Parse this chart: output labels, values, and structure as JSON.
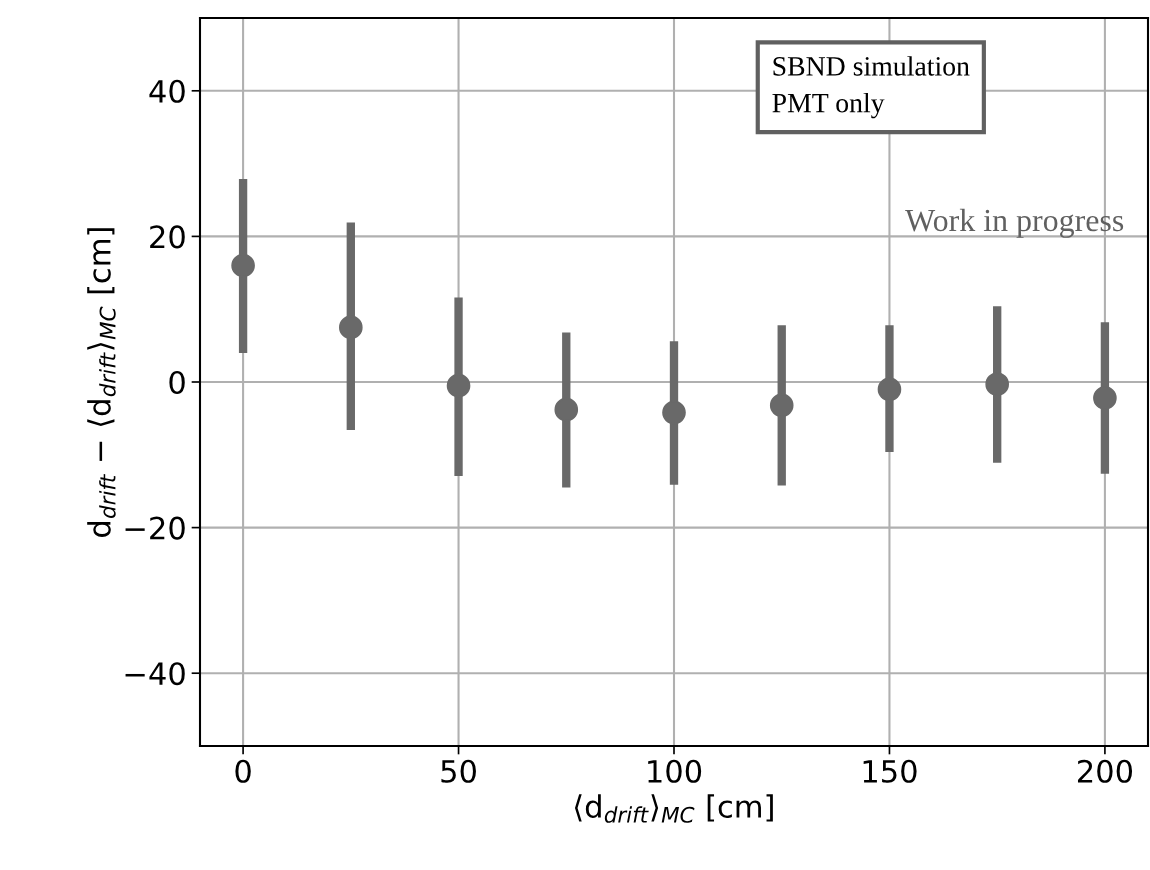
{
  "chart_data": {
    "type": "scatter",
    "xlabel": "⟨d$_{drift}$⟩$_{MC}$ [cm]",
    "ylabel": "d$_{drift}$ − ⟨d$_{drift}$⟩$_{MC}$ [cm]",
    "x": [
      0,
      25,
      50,
      75,
      100,
      125,
      150,
      175,
      200
    ],
    "series": [
      {
        "color": "#696969",
        "values": [
          16.0,
          7.5,
          -0.5,
          -3.8,
          -4.2,
          -3.2,
          -1.0,
          -0.3,
          -2.2
        ],
        "errors": [
          [
            4.0,
            27.9
          ],
          [
            -6.6,
            21.9
          ],
          [
            -12.9,
            11.6
          ],
          [
            -14.5,
            6.8
          ],
          [
            -14.1,
            5.6
          ],
          [
            -14.2,
            7.8
          ],
          [
            -9.6,
            7.8
          ],
          [
            -11.1,
            10.4
          ],
          [
            -12.6,
            8.2
          ]
        ]
      }
    ],
    "xlim": [
      -10,
      210
    ],
    "xticks": [
      0,
      50,
      100,
      150,
      200
    ],
    "ylim": [
      -50,
      50
    ],
    "yticks": [
      -40,
      -20,
      0,
      20,
      40
    ],
    "grid": true,
    "marker": "circle",
    "annotations": [
      "SBND simulation\nPMT only",
      "Work in progress"
    ]
  }
}
